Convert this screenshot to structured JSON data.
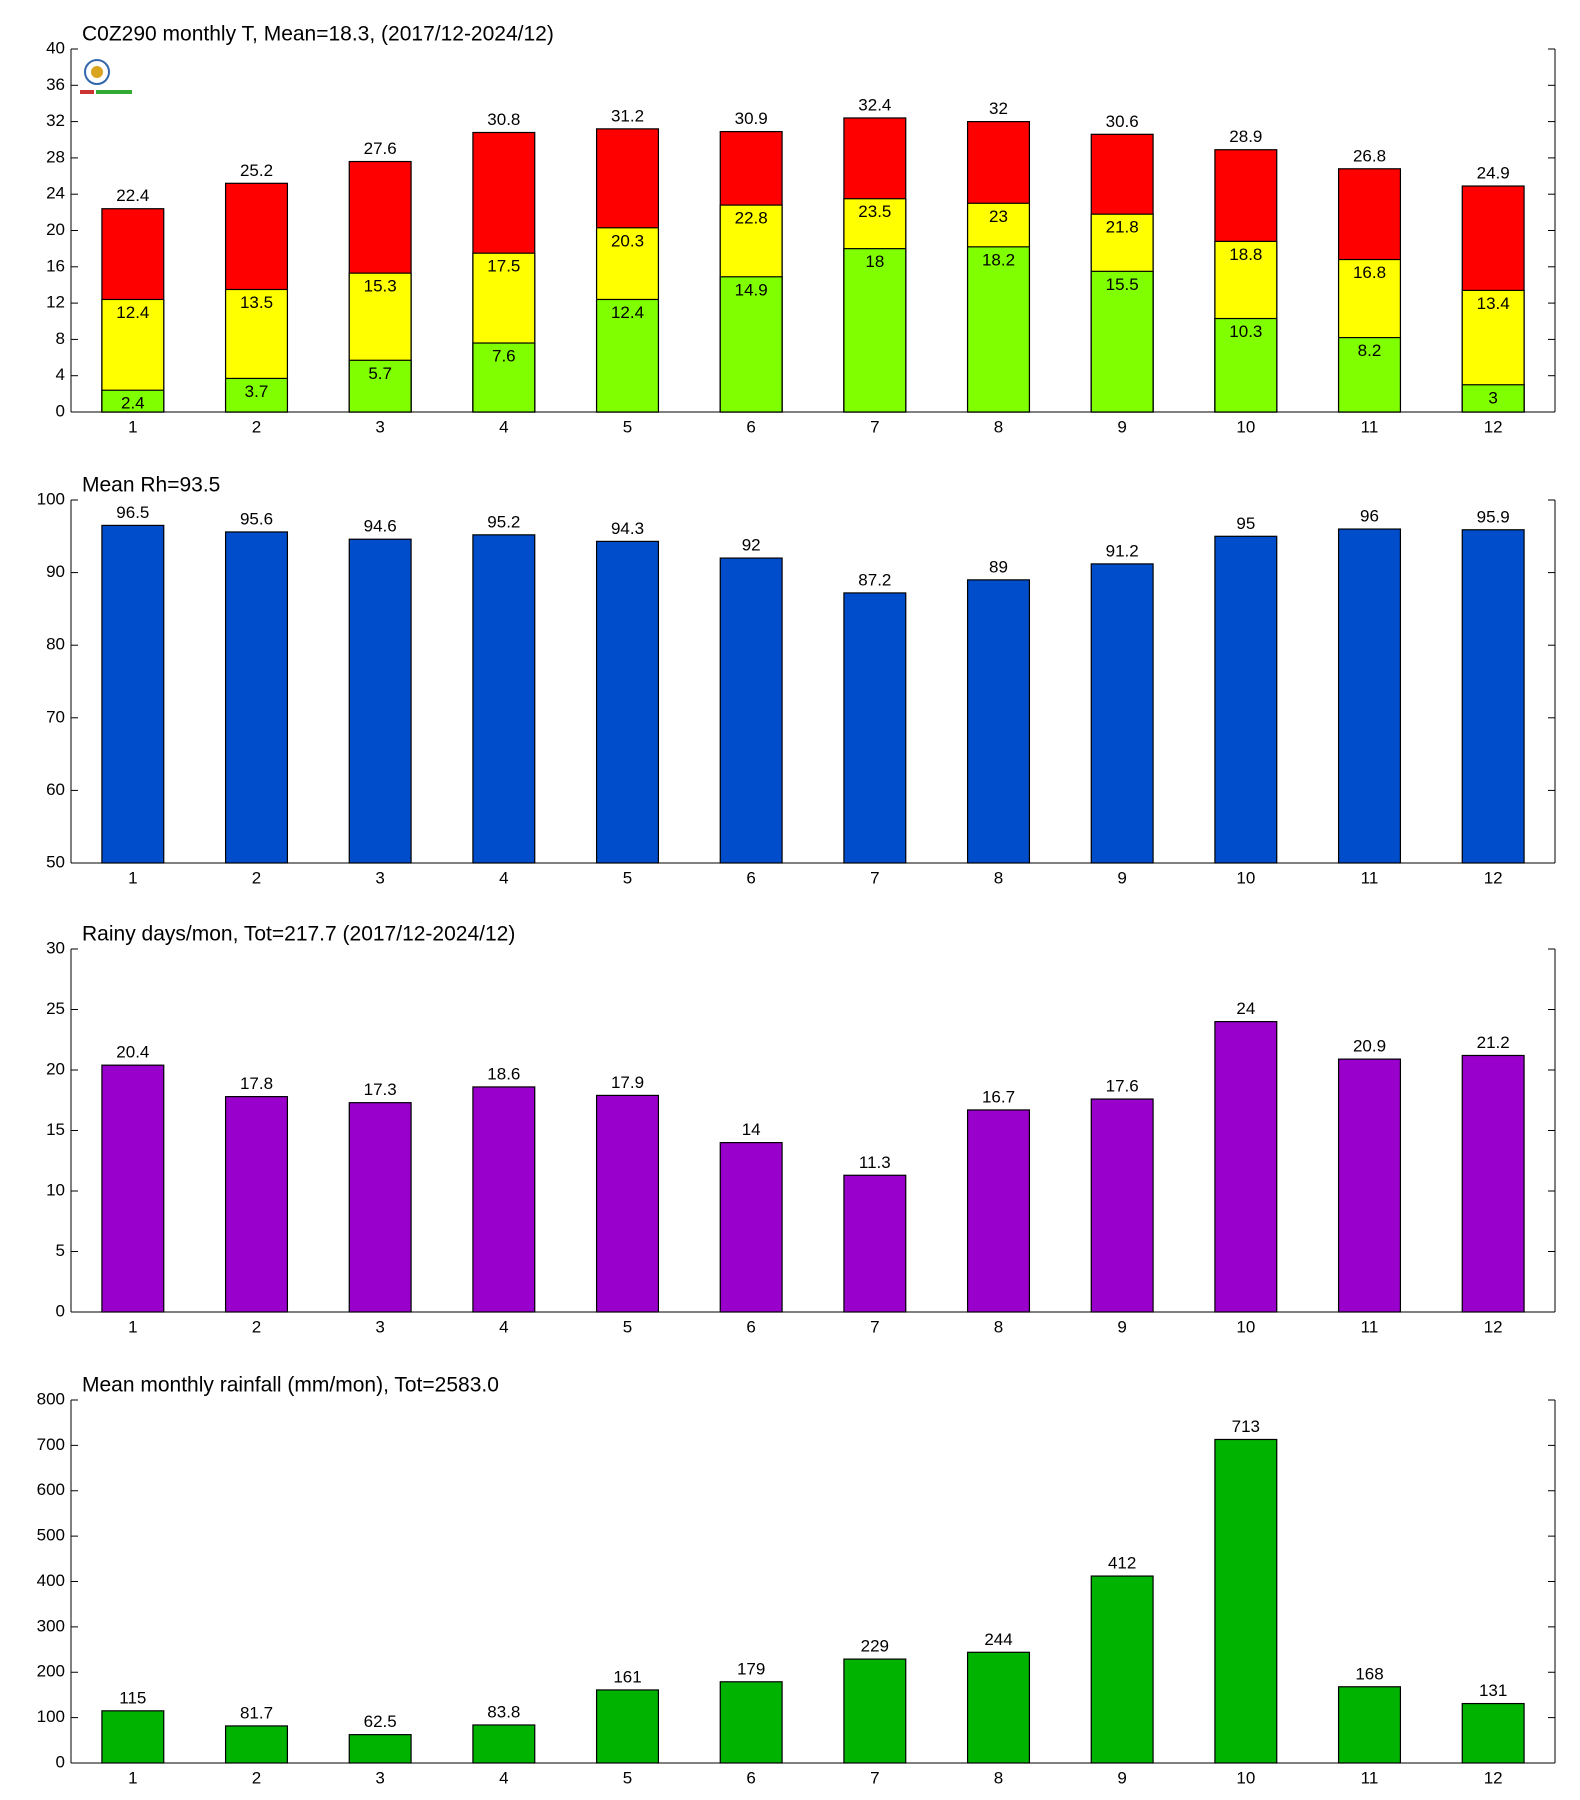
{
  "chart_data": [
    {
      "type": "bar",
      "title": "C0Z290 monthly T, Mean=18.3, (2017/12-2024/12)",
      "categories": [
        "1",
        "2",
        "3",
        "4",
        "5",
        "6",
        "7",
        "8",
        "9",
        "10",
        "11",
        "12"
      ],
      "series": [
        {
          "color": "#ff0000",
          "values": [
            22.4,
            25.2,
            27.6,
            30.8,
            31.2,
            30.9,
            32.4,
            32,
            30.6,
            28.9,
            26.8,
            24.9
          ]
        },
        {
          "color": "#ffff00",
          "values": [
            12.4,
            13.5,
            15.3,
            17.5,
            20.3,
            22.8,
            23.5,
            23,
            21.8,
            18.8,
            16.8,
            13.4
          ]
        },
        {
          "color": "#80ff00",
          "values": [
            2.4,
            3.7,
            5.7,
            7.6,
            12.4,
            14.9,
            18,
            18.2,
            15.5,
            10.3,
            8.2,
            3
          ]
        }
      ],
      "ylim": [
        0,
        40
      ],
      "yticks": [
        0,
        4,
        8,
        12,
        16,
        20,
        24,
        28,
        32,
        36,
        40
      ]
    },
    {
      "type": "bar",
      "title": "Mean Rh=93.5",
      "categories": [
        "1",
        "2",
        "3",
        "4",
        "5",
        "6",
        "7",
        "8",
        "9",
        "10",
        "11",
        "12"
      ],
      "values": [
        96.5,
        95.6,
        94.6,
        95.2,
        94.3,
        92,
        87.2,
        89,
        91.2,
        95,
        96,
        95.9
      ],
      "color": "#004dcc",
      "ylim": [
        50,
        100
      ],
      "yticks": [
        50,
        60,
        70,
        80,
        90,
        100
      ]
    },
    {
      "type": "bar",
      "title": "Rainy days/mon, Tot=217.7 (2017/12-2024/12)",
      "categories": [
        "1",
        "2",
        "3",
        "4",
        "5",
        "6",
        "7",
        "8",
        "9",
        "10",
        "11",
        "12"
      ],
      "values": [
        20.4,
        17.8,
        17.3,
        18.6,
        17.9,
        14,
        11.3,
        16.7,
        17.6,
        24,
        20.9,
        21.2
      ],
      "color": "#9900cc",
      "ylim": [
        0,
        30
      ],
      "yticks": [
        0,
        5,
        10,
        15,
        20,
        25,
        30
      ]
    },
    {
      "type": "bar",
      "title": "Mean monthly rainfall (mm/mon), Tot=2583.0",
      "categories": [
        "1",
        "2",
        "3",
        "4",
        "5",
        "6",
        "7",
        "8",
        "9",
        "10",
        "11",
        "12"
      ],
      "values": [
        115,
        81.7,
        62.5,
        83.8,
        161,
        179,
        229,
        244,
        412,
        713,
        168,
        131
      ],
      "color": "#00b300",
      "ylim": [
        0,
        800
      ],
      "yticks": [
        0,
        100,
        200,
        300,
        400,
        500,
        600,
        700,
        800
      ]
    }
  ]
}
